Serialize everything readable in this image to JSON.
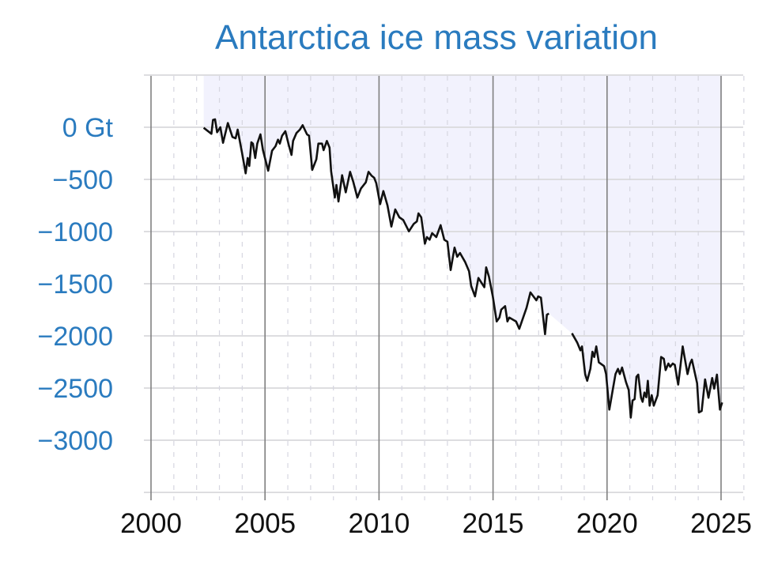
{
  "chart_data": {
    "type": "line",
    "title": "Antarctica ice mass variation",
    "xlabel": "",
    "ylabel": "",
    "xlim": [
      1999.7,
      2026
    ],
    "ylim": [
      -3520,
      490
    ],
    "grid": true,
    "x_ticks": [
      2000,
      2005,
      2010,
      2015,
      2020,
      2025
    ],
    "x_tick_labels": [
      "2000",
      "2005",
      "2010",
      "2015",
      "2020",
      "2025"
    ],
    "y_ticks": [
      0,
      -500,
      -1000,
      -1500,
      -2000,
      -2500,
      -3000
    ],
    "y_tick_labels": [
      "0 Gt",
      "−500",
      "−1000",
      "−1500",
      "−2000",
      "−2500",
      "−3000"
    ],
    "colors": {
      "title": "#2a7bbf",
      "y_labels": "#2a7bbf",
      "line": "#111111",
      "fill": "#f2f2fd"
    },
    "series": [
      {
        "segments": [
          [
            [
              2002.31,
              -5
            ],
            [
              2002.65,
              -63
            ],
            [
              2002.72,
              70
            ],
            [
              2002.81,
              76
            ],
            [
              2002.9,
              -48
            ],
            [
              2003.04,
              0
            ],
            [
              2003.16,
              -149
            ],
            [
              2003.37,
              40
            ],
            [
              2003.57,
              -93
            ],
            [
              2003.71,
              -106
            ],
            [
              2003.8,
              -23
            ],
            [
              2003.99,
              -245
            ],
            [
              2004.15,
              -442
            ],
            [
              2004.24,
              -295
            ],
            [
              2004.31,
              -371
            ],
            [
              2004.4,
              -144
            ],
            [
              2004.47,
              -157
            ],
            [
              2004.57,
              -295
            ],
            [
              2004.66,
              -157
            ],
            [
              2004.8,
              -68
            ],
            [
              2004.91,
              -220
            ],
            [
              2005.14,
              -417
            ],
            [
              2005.31,
              -225
            ],
            [
              2005.46,
              -182
            ],
            [
              2005.57,
              -119
            ],
            [
              2005.65,
              -157
            ],
            [
              2005.75,
              -81
            ],
            [
              2005.89,
              -38
            ],
            [
              2006.04,
              -169
            ],
            [
              2006.16,
              -265
            ],
            [
              2006.23,
              -131
            ],
            [
              2006.38,
              -55
            ],
            [
              2006.53,
              -23
            ],
            [
              2006.65,
              20
            ],
            [
              2006.84,
              -68
            ],
            [
              2006.93,
              -81
            ],
            [
              2007.07,
              -409
            ],
            [
              2007.25,
              -308
            ],
            [
              2007.34,
              -157
            ],
            [
              2007.5,
              -157
            ],
            [
              2007.57,
              -220
            ],
            [
              2007.71,
              -131
            ],
            [
              2007.83,
              -195
            ],
            [
              2007.9,
              -422
            ],
            [
              2008.06,
              -674
            ],
            [
              2008.13,
              -553
            ],
            [
              2008.22,
              -712
            ],
            [
              2008.38,
              -460
            ],
            [
              2008.54,
              -624
            ],
            [
              2008.73,
              -427
            ],
            [
              2008.87,
              -523
            ],
            [
              2009.05,
              -674
            ],
            [
              2009.21,
              -586
            ],
            [
              2009.42,
              -528
            ],
            [
              2009.54,
              -427
            ],
            [
              2009.67,
              -464
            ],
            [
              2009.79,
              -485
            ],
            [
              2009.88,
              -536
            ],
            [
              2010.05,
              -737
            ],
            [
              2010.19,
              -611
            ],
            [
              2010.37,
              -750
            ],
            [
              2010.54,
              -952
            ],
            [
              2010.71,
              -788
            ],
            [
              2010.89,
              -864
            ],
            [
              2011.06,
              -889
            ],
            [
              2011.31,
              -998
            ],
            [
              2011.52,
              -927
            ],
            [
              2011.66,
              -902
            ],
            [
              2011.73,
              -826
            ],
            [
              2011.85,
              -864
            ],
            [
              2012.01,
              -1116
            ],
            [
              2012.1,
              -1053
            ],
            [
              2012.22,
              -1078
            ],
            [
              2012.33,
              -1015
            ],
            [
              2012.51,
              -1053
            ],
            [
              2012.7,
              -939
            ],
            [
              2012.86,
              -1078
            ],
            [
              2013.0,
              -1098
            ],
            [
              2013.14,
              -1369
            ],
            [
              2013.31,
              -1154
            ],
            [
              2013.43,
              -1242
            ],
            [
              2013.55,
              -1205
            ],
            [
              2013.78,
              -1293
            ],
            [
              2013.95,
              -1381
            ],
            [
              2014.04,
              -1520
            ],
            [
              2014.21,
              -1621
            ],
            [
              2014.36,
              -1445
            ],
            [
              2014.62,
              -1533
            ],
            [
              2014.7,
              -1343
            ],
            [
              2014.82,
              -1432
            ],
            [
              2014.99,
              -1621
            ],
            [
              2015.16,
              -1861
            ],
            [
              2015.28,
              -1824
            ],
            [
              2015.36,
              -1748
            ],
            [
              2015.53,
              -1715
            ],
            [
              2015.63,
              -1861
            ],
            [
              2015.71,
              -1824
            ],
            [
              2016.01,
              -1861
            ],
            [
              2016.15,
              -1932
            ],
            [
              2016.32,
              -1824
            ],
            [
              2016.47,
              -1730
            ],
            [
              2016.64,
              -1583
            ],
            [
              2016.9,
              -1659
            ],
            [
              2016.98,
              -1621
            ],
            [
              2017.1,
              -1634
            ],
            [
              2017.28,
              -1983
            ],
            [
              2017.36,
              -1798
            ],
            [
              2017.45,
              -1786
            ]
          ],
          [
            [
              2018.46,
              -1975
            ],
            [
              2018.69,
              -2063
            ],
            [
              2018.83,
              -2139
            ],
            [
              2018.9,
              -2101
            ],
            [
              2019.04,
              -2366
            ],
            [
              2019.13,
              -2430
            ],
            [
              2019.27,
              -2316
            ],
            [
              2019.36,
              -2152
            ],
            [
              2019.44,
              -2202
            ],
            [
              2019.53,
              -2101
            ],
            [
              2019.64,
              -2253
            ],
            [
              2019.87,
              -2290
            ],
            [
              2019.96,
              -2366
            ],
            [
              2020.1,
              -2707
            ],
            [
              2020.25,
              -2518
            ],
            [
              2020.37,
              -2366
            ],
            [
              2020.48,
              -2316
            ],
            [
              2020.56,
              -2366
            ],
            [
              2020.66,
              -2303
            ],
            [
              2020.83,
              -2442
            ],
            [
              2020.95,
              -2518
            ],
            [
              2021.04,
              -2783
            ],
            [
              2021.12,
              -2619
            ],
            [
              2021.21,
              -2606
            ],
            [
              2021.29,
              -2392
            ],
            [
              2021.37,
              -2371
            ],
            [
              2021.49,
              -2593
            ],
            [
              2021.56,
              -2632
            ],
            [
              2021.64,
              -2543
            ],
            [
              2021.72,
              -2589
            ],
            [
              2021.79,
              -2430
            ],
            [
              2021.87,
              -2669
            ],
            [
              2021.96,
              -2568
            ],
            [
              2022.05,
              -2669
            ],
            [
              2022.22,
              -2568
            ],
            [
              2022.37,
              -2202
            ],
            [
              2022.49,
              -2220
            ],
            [
              2022.57,
              -2328
            ],
            [
              2022.69,
              -2265
            ],
            [
              2022.77,
              -2296
            ],
            [
              2022.88,
              -2265
            ],
            [
              2022.97,
              -2278
            ],
            [
              2023.12,
              -2467
            ],
            [
              2023.23,
              -2265
            ],
            [
              2023.32,
              -2101
            ],
            [
              2023.42,
              -2227
            ],
            [
              2023.53,
              -2366
            ],
            [
              2023.64,
              -2265
            ],
            [
              2023.72,
              -2227
            ],
            [
              2023.95,
              -2454
            ],
            [
              2024.03,
              -2733
            ],
            [
              2024.15,
              -2720
            ],
            [
              2024.3,
              -2417
            ],
            [
              2024.45,
              -2593
            ],
            [
              2024.61,
              -2404
            ],
            [
              2024.7,
              -2505
            ],
            [
              2024.82,
              -2371
            ],
            [
              2024.95,
              -2707
            ],
            [
              2025.05,
              -2639
            ]
          ]
        ]
      }
    ]
  }
}
